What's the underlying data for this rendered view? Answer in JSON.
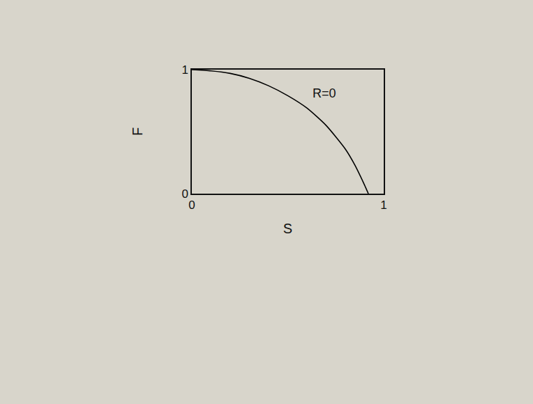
{
  "chart_data": {
    "type": "line",
    "x": [
      0,
      0.1,
      0.2,
      0.3,
      0.4,
      0.5,
      0.6,
      0.7,
      0.8,
      0.85,
      0.9,
      0.92
    ],
    "values": [
      1,
      0.99,
      0.97,
      0.93,
      0.87,
      0.79,
      0.69,
      0.55,
      0.36,
      0.23,
      0.07,
      0
    ],
    "color": "#000000",
    "x_label": "S",
    "y_label": "F",
    "annotations": [
      {
        "text": "R=0",
        "x": 0.62,
        "y": 0.74
      }
    ],
    "xlim": [
      0,
      1
    ],
    "ylim": [
      0,
      1
    ],
    "xticks": [
      0,
      1
    ],
    "yticks": [
      0,
      1
    ],
    "grid": false
  }
}
